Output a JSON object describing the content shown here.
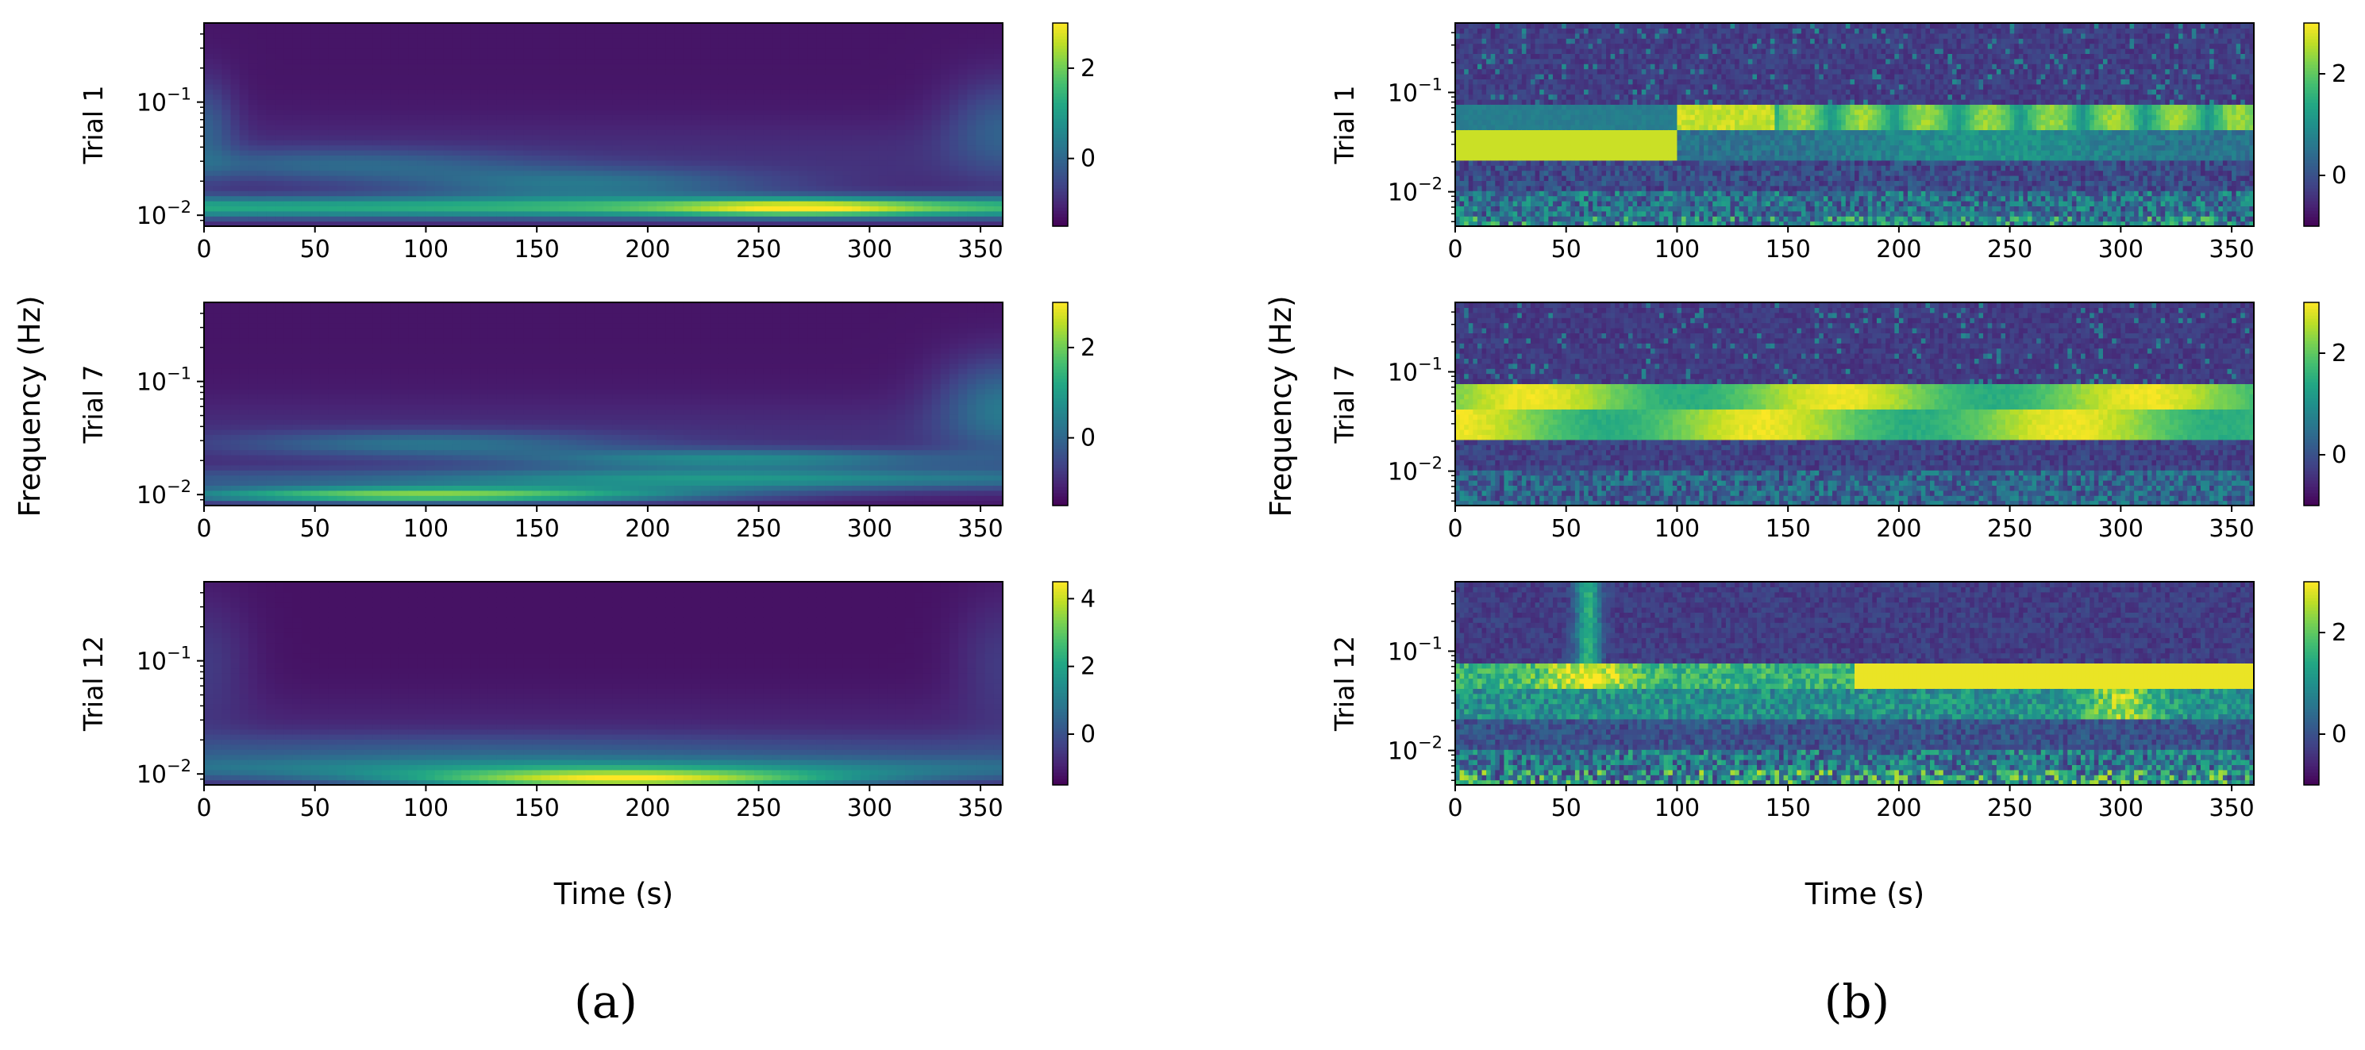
{
  "figure": {
    "ylabel": "Frequency (Hz)",
    "xlabel": "Time (s)",
    "panels": [
      {
        "label": "(a)"
      },
      {
        "label": "(b)"
      }
    ]
  },
  "chart_data": [
    {
      "type": "heatmap",
      "panel": "(a)",
      "title": "",
      "ylabel": "Trial 1",
      "xlabel": "",
      "x_ticks": [
        0,
        50,
        100,
        150,
        200,
        250,
        300,
        350
      ],
      "xlim": [
        0,
        360
      ],
      "y_scale": "log",
      "y_ticks": [
        "10^-2",
        "10^-1"
      ],
      "ylim": [
        0.008,
        0.5
      ],
      "colorbar": {
        "ticks": [
          0,
          2
        ],
        "range": [
          -1.5,
          3.0
        ],
        "colormap": "viridis"
      },
      "pattern": "smooth wavelet scalogram; high power near 0.01 Hz, strongest around 250–300 s"
    },
    {
      "type": "heatmap",
      "panel": "(a)",
      "title": "",
      "ylabel": "Trial 7",
      "xlabel": "",
      "x_ticks": [
        0,
        50,
        100,
        150,
        200,
        250,
        300,
        350
      ],
      "xlim": [
        0,
        360
      ],
      "y_scale": "log",
      "y_ticks": [
        "10^-2",
        "10^-1"
      ],
      "ylim": [
        0.008,
        0.5
      ],
      "colorbar": {
        "ticks": [
          0,
          2
        ],
        "range": [
          -1.5,
          3.0
        ],
        "colormap": "viridis"
      },
      "pattern": "smooth wavelet scalogram; high power near 0.01 Hz for 0–150 s, band near 0.02 Hz later"
    },
    {
      "type": "heatmap",
      "panel": "(a)",
      "title": "",
      "ylabel": "Trial 12",
      "xlabel": "",
      "x_ticks": [
        0,
        50,
        100,
        150,
        200,
        250,
        300,
        350
      ],
      "xlim": [
        0,
        360
      ],
      "y_scale": "log",
      "y_ticks": [
        "10^-2",
        "10^-1"
      ],
      "ylim": [
        0.008,
        0.5
      ],
      "colorbar": {
        "ticks": [
          0,
          2,
          4
        ],
        "range": [
          -1.5,
          4.5
        ],
        "colormap": "viridis"
      },
      "pattern": "smooth wavelet scalogram; high power at lowest frequency around 150–250 s"
    },
    {
      "type": "heatmap",
      "panel": "(b)",
      "title": "",
      "ylabel": "Trial 1",
      "xlabel": "",
      "x_ticks": [
        0,
        50,
        100,
        150,
        200,
        250,
        300,
        350
      ],
      "xlim": [
        0,
        360
      ],
      "y_scale": "log",
      "y_ticks": [
        "10^-2",
        "10^-1"
      ],
      "ylim": [
        0.0045,
        0.5
      ],
      "colorbar": {
        "ticks": [
          0,
          2
        ],
        "range": [
          -1.0,
          3.0
        ],
        "colormap": "viridis"
      },
      "pattern": "banded spectrogram; bright band 0.04–0.08 Hz (strongest 100–145 s), bright band 0.02–0.04 Hz for 0–100 s"
    },
    {
      "type": "heatmap",
      "panel": "(b)",
      "title": "",
      "ylabel": "Trial 7",
      "xlabel": "",
      "x_ticks": [
        0,
        50,
        100,
        150,
        200,
        250,
        300,
        350
      ],
      "xlim": [
        0,
        360
      ],
      "y_scale": "log",
      "y_ticks": [
        "10^-2",
        "10^-1"
      ],
      "ylim": [
        0.0045,
        0.5
      ],
      "colorbar": {
        "ticks": [
          0,
          2
        ],
        "range": [
          -1.0,
          3.0
        ],
        "colormap": "viridis"
      },
      "pattern": "banded spectrogram; alternating bright bands at 0.04–0.08 Hz and 0.02–0.04 Hz across full duration"
    },
    {
      "type": "heatmap",
      "panel": "(b)",
      "title": "",
      "ylabel": "Trial 12",
      "xlabel": "",
      "x_ticks": [
        0,
        50,
        100,
        150,
        200,
        250,
        300,
        350
      ],
      "xlim": [
        0,
        360
      ],
      "y_scale": "log",
      "y_ticks": [
        "10^-2",
        "10^-1"
      ],
      "ylim": [
        0.0045,
        0.5
      ],
      "colorbar": {
        "ticks": [
          0,
          2
        ],
        "range": [
          -1.0,
          3.0
        ],
        "colormap": "viridis"
      },
      "pattern": "banded spectrogram; strong band 0.04–0.08 Hz from 180 s onward, bright at 40–80 s"
    }
  ]
}
